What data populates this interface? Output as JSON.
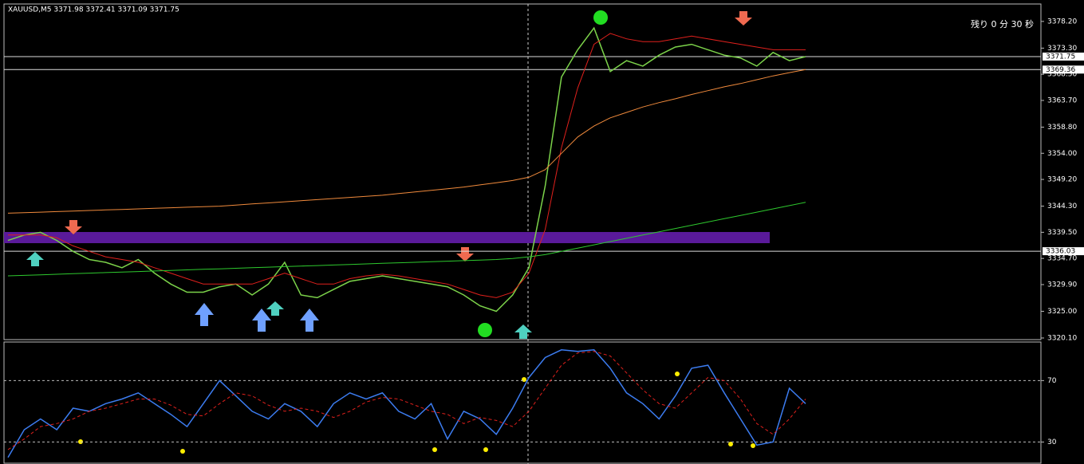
{
  "chart_data": [
    {
      "type": "line",
      "title": "XAUUSD,M5  3371.98 3372.41 3371.09 3371.75",
      "timer": "残り 0 分 30 秒",
      "ylim": [
        3319.8,
        3381.4
      ],
      "yticks": [
        {
          "value": 3378.2,
          "label": "3378.20"
        },
        {
          "value": 3373.3,
          "label": "3373.30"
        },
        {
          "value": 3368.5,
          "label": "3368.50"
        },
        {
          "value": 3363.7,
          "label": "3363.70"
        },
        {
          "value": 3358.8,
          "label": "3358.80"
        },
        {
          "value": 3354,
          "label": "3354.00"
        },
        {
          "value": 3349.2,
          "label": "3349.20"
        },
        {
          "value": 3344.3,
          "label": "3344.30"
        },
        {
          "value": 3339.5,
          "label": "3339.50"
        },
        {
          "value": 3334.7,
          "label": "3334.70"
        },
        {
          "value": 3329.9,
          "label": "3329.90"
        },
        {
          "value": 3325,
          "label": "3325.00"
        },
        {
          "value": 3320.1,
          "label": "3320.10"
        }
      ],
      "price_levels": [
        {
          "value": 3371.75,
          "label": "3371.75"
        },
        {
          "value": 3369.36,
          "label": "3369.36"
        },
        {
          "value": 3336.03,
          "label": "3336.03"
        }
      ],
      "series": [
        {
          "color": "#7cd34a",
          "values": [
            3338,
            3339,
            3339.5,
            3338,
            3336,
            3334.5,
            3334,
            3333,
            3334.5,
            3332,
            3330,
            3328.5,
            3328.5,
            3329.5,
            3330,
            3328,
            3330,
            3334,
            3328,
            3327.5,
            3329,
            3330.5,
            3331,
            3331.5,
            3331,
            3330.5,
            3330,
            3329.5,
            3328,
            3326,
            3325,
            3328,
            3333,
            3348,
            3368,
            3373,
            3377,
            3369,
            3371,
            3370,
            3372,
            3373.5,
            3374,
            3373,
            3372,
            3371.5,
            3370,
            3372.5,
            3371,
            3371.75
          ]
        },
        {
          "color": "#e0201c",
          "values": [
            3339,
            3339,
            3339,
            3338.5,
            3337,
            3336,
            3335,
            3334.5,
            3334,
            3333,
            3332,
            3331,
            3330,
            3330,
            3330,
            3330,
            3331,
            3332,
            3331,
            3330,
            3330,
            3331,
            3331.5,
            3331.8,
            3331.5,
            3331,
            3330.5,
            3330,
            3329,
            3328,
            3327.5,
            3328.5,
            3332,
            3340,
            3355,
            3366,
            3374,
            3376,
            3375,
            3374.5,
            3374.5,
            3375,
            3375.5,
            3375,
            3374.5,
            3374,
            3373.5,
            3373,
            3373,
            3373
          ]
        },
        {
          "color": "#f08a3c",
          "values": [
            3343,
            3343.1,
            3343.2,
            3343.3,
            3343.4,
            3343.5,
            3343.6,
            3343.7,
            3343.8,
            3343.9,
            3344,
            3344.1,
            3344.2,
            3344.3,
            3344.5,
            3344.7,
            3344.9,
            3345.1,
            3345.3,
            3345.5,
            3345.7,
            3345.9,
            3346.1,
            3346.3,
            3346.6,
            3346.9,
            3347.2,
            3347.5,
            3347.8,
            3348.2,
            3348.6,
            3349,
            3349.6,
            3351,
            3354,
            3357,
            3359,
            3360.5,
            3361.5,
            3362.5,
            3363.3,
            3364,
            3364.8,
            3365.5,
            3366.2,
            3366.8,
            3367.5,
            3368.2,
            3368.8,
            3369.36
          ]
        },
        {
          "color": "#2ec92e",
          "values": [
            3331.5,
            3331.6,
            3331.7,
            3331.8,
            3331.9,
            3332,
            3332.1,
            3332.2,
            3332.3,
            3332.4,
            3332.5,
            3332.6,
            3332.7,
            3332.8,
            3332.9,
            3333,
            3333.1,
            3333.2,
            3333.3,
            3333.4,
            3333.5,
            3333.6,
            3333.7,
            3333.8,
            3333.9,
            3334,
            3334.1,
            3334.2,
            3334.3,
            3334.4,
            3334.5,
            3334.7,
            3335,
            3335.4,
            3336,
            3336.6,
            3337.2,
            3337.8,
            3338.4,
            3339,
            3339.6,
            3340.2,
            3340.8,
            3341.4,
            3342,
            3342.6,
            3343.2,
            3343.8,
            3344.4,
            3345
          ]
        }
      ]
    },
    {
      "type": "line",
      "ylim": [
        16.2,
        95.1
      ],
      "yticks": [
        70,
        30
      ],
      "series": [
        {
          "color": "#3c7cf0",
          "values": [
            20,
            38,
            45,
            38,
            52,
            50,
            55,
            58,
            62,
            55,
            48,
            40,
            55,
            70,
            60,
            50,
            45,
            55,
            50,
            40,
            55,
            62,
            58,
            62,
            50,
            45,
            55,
            32,
            50,
            45,
            35,
            52,
            72,
            85,
            90,
            89,
            90,
            78,
            62,
            55,
            45,
            60,
            78,
            80,
            62,
            45,
            28,
            30,
            65,
            55
          ]
        },
        {
          "color": "#e0201c",
          "dashed": true,
          "values": [
            25,
            32,
            40,
            42,
            45,
            50,
            52,
            55,
            58,
            58,
            54,
            48,
            47,
            55,
            62,
            60,
            54,
            50,
            52,
            50,
            46,
            50,
            56,
            59,
            58,
            54,
            50,
            48,
            42,
            46,
            44,
            40,
            50,
            65,
            80,
            88,
            89,
            86,
            75,
            64,
            55,
            52,
            62,
            72,
            70,
            58,
            42,
            35,
            45,
            58
          ]
        }
      ]
    }
  ]
}
